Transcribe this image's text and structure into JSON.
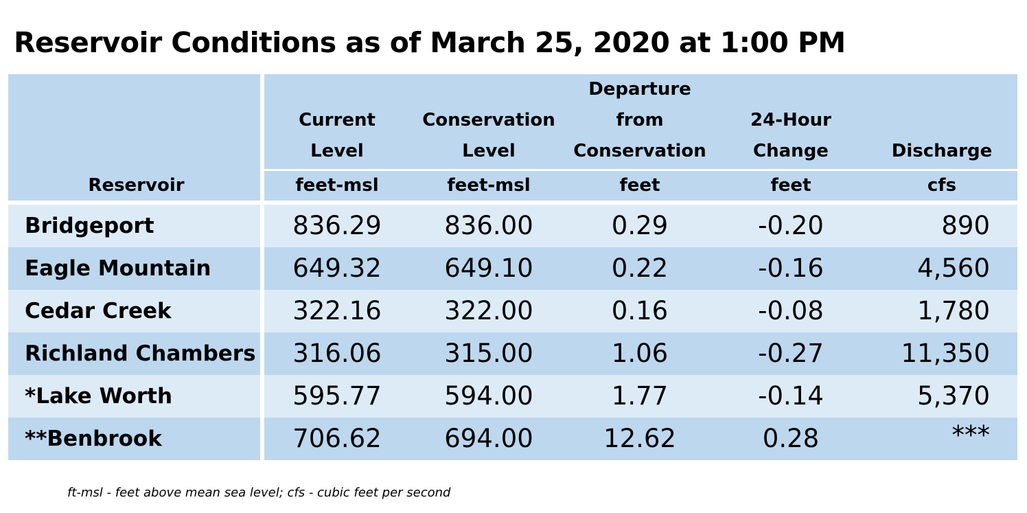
{
  "title": "Reservoir Conditions as of March 25, 2020 at 1:00 PM",
  "table": {
    "columns": [
      {
        "header": "Reservoir",
        "unit": ""
      },
      {
        "header": "Current\nLevel",
        "unit": "feet-msl"
      },
      {
        "header": "Conservation\nLevel",
        "unit": "feet-msl"
      },
      {
        "header": "Departure\nfrom\nConservation",
        "unit": "feet"
      },
      {
        "header": "24-Hour\nChange",
        "unit": "feet"
      },
      {
        "header": "Discharge",
        "unit": "cfs"
      }
    ],
    "rows": [
      {
        "name": "Bridgeport",
        "current": "836.29",
        "conservation": "836.00",
        "departure": "0.29",
        "change": "-0.20",
        "discharge": "890"
      },
      {
        "name": "Eagle Mountain",
        "current": "649.32",
        "conservation": "649.10",
        "departure": "0.22",
        "change": "-0.16",
        "discharge": "4,560"
      },
      {
        "name": "Cedar Creek",
        "current": "322.16",
        "conservation": "322.00",
        "departure": "0.16",
        "change": "-0.08",
        "discharge": "1,780"
      },
      {
        "name": "Richland Chambers",
        "current": "316.06",
        "conservation": "315.00",
        "departure": "1.06",
        "change": "-0.27",
        "discharge": "11,350"
      },
      {
        "name": "*Lake Worth",
        "current": "595.77",
        "conservation": "594.00",
        "departure": "1.77",
        "change": "-0.14",
        "discharge": "5,370"
      },
      {
        "name": "**Benbrook",
        "current": "706.62",
        "conservation": "694.00",
        "departure": "12.62",
        "change": "0.28",
        "discharge": "***"
      }
    ]
  },
  "footnote": "ft-msl - feet above mean sea level; cfs - cubic feet per second",
  "colors": {
    "header_bg": "#bdd7ee",
    "row_light": "#ddebf7",
    "row_dark": "#bdd7ee",
    "divider": "#ffffff"
  }
}
